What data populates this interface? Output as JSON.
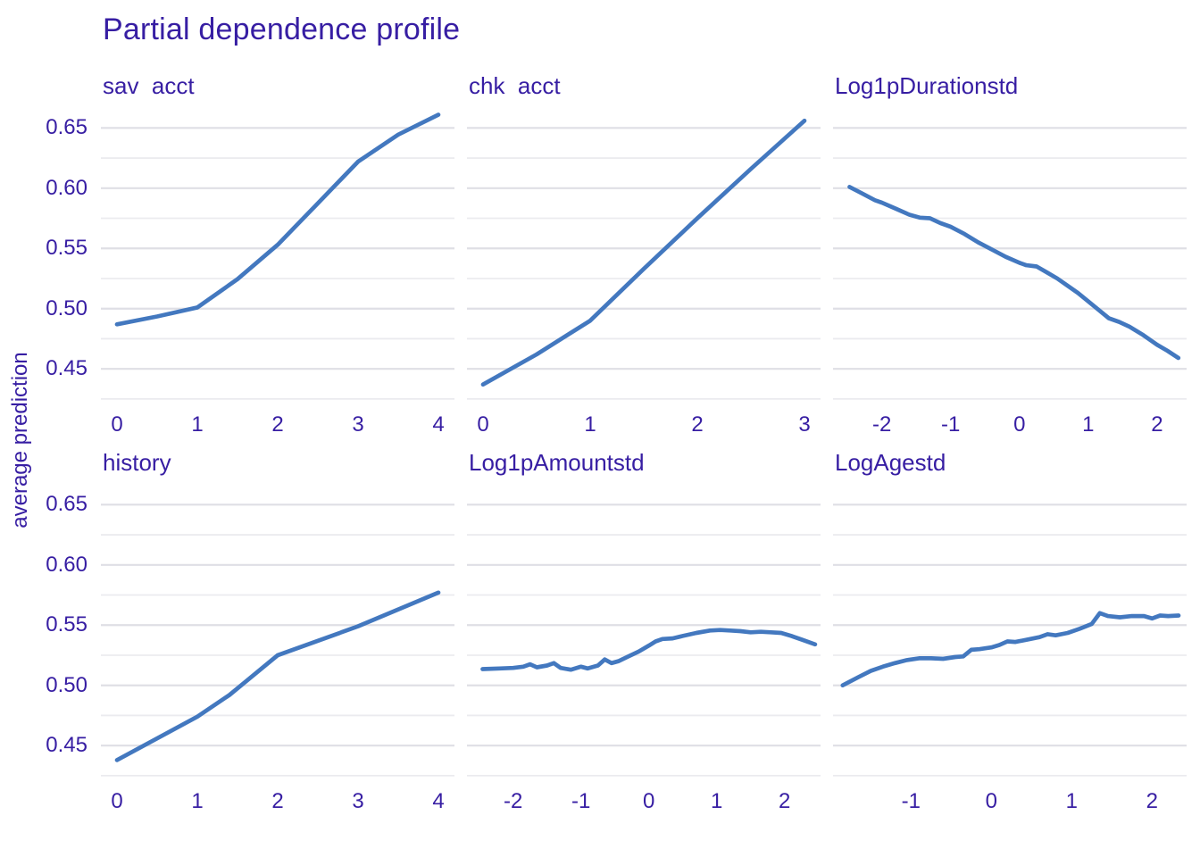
{
  "title": "Partial dependence profile",
  "ylabel": "average prediction",
  "colors": {
    "text": "#371ea3",
    "line": "#4378bf",
    "grid_major": "#dfdfe5",
    "grid_minor": "#ebebef",
    "background": "#ffffff"
  },
  "chart_data": {
    "type": "line",
    "figure_title": "Partial dependence profile",
    "ylabel": "average prediction",
    "ylim": [
      0.419,
      0.671
    ],
    "grid": "horizontal-only",
    "legend": "none",
    "y_axis": {
      "tick_values": [
        0.65,
        0.6,
        0.55,
        0.5,
        0.45
      ],
      "tick_labels": [
        "0.65",
        "0.60",
        "0.55",
        "0.50",
        "0.45"
      ],
      "minor_gridlines": [
        0.625,
        0.575,
        0.525,
        0.475,
        0.425
      ]
    },
    "panels": [
      {
        "label": "sav  acct",
        "xlim": [
          -0.2,
          4.2
        ],
        "xticks": {
          "values": [
            0,
            1,
            2,
            3,
            4
          ],
          "labels": [
            "0",
            "1",
            "2",
            "3",
            "4"
          ]
        },
        "points": [
          [
            0,
            0.487
          ],
          [
            0.5,
            0.4935
          ],
          [
            1,
            0.501
          ],
          [
            1.5,
            0.5245
          ],
          [
            2,
            0.553
          ],
          [
            2.5,
            0.5875
          ],
          [
            3,
            0.622
          ],
          [
            3.5,
            0.6445
          ],
          [
            4,
            0.661
          ]
        ]
      },
      {
        "label": "chk  acct",
        "xlim": [
          -0.15,
          3.15
        ],
        "xticks": {
          "values": [
            0,
            1,
            2,
            3
          ],
          "labels": [
            "0",
            "1",
            "2",
            "3"
          ]
        },
        "points": [
          [
            0,
            0.437
          ],
          [
            0.5,
            0.462
          ],
          [
            1,
            0.49
          ],
          [
            1.5,
            0.533
          ],
          [
            2,
            0.575
          ],
          [
            2.5,
            0.616
          ],
          [
            3,
            0.656
          ]
        ]
      },
      {
        "label": "Log1pDurationstd",
        "xlim": [
          -2.71,
          2.43
        ],
        "xticks": {
          "values": [
            -2,
            -1,
            0,
            1,
            2
          ],
          "labels": [
            "-2",
            "-1",
            "0",
            "1",
            "2"
          ]
        },
        "points": [
          [
            -2.47,
            0.601
          ],
          [
            -2.3,
            0.596
          ],
          [
            -2.1,
            0.59
          ],
          [
            -2.0,
            0.588
          ],
          [
            -1.8,
            0.583
          ],
          [
            -1.6,
            0.578
          ],
          [
            -1.45,
            0.5755
          ],
          [
            -1.3,
            0.575
          ],
          [
            -1.15,
            0.571
          ],
          [
            -1.0,
            0.568
          ],
          [
            -0.8,
            0.562
          ],
          [
            -0.6,
            0.555
          ],
          [
            -0.4,
            0.549
          ],
          [
            -0.2,
            0.543
          ],
          [
            0,
            0.538
          ],
          [
            0.1,
            0.536
          ],
          [
            0.25,
            0.535
          ],
          [
            0.4,
            0.53
          ],
          [
            0.55,
            0.525
          ],
          [
            0.7,
            0.519
          ],
          [
            0.85,
            0.513
          ],
          [
            1.0,
            0.506
          ],
          [
            1.15,
            0.499
          ],
          [
            1.3,
            0.492
          ],
          [
            1.45,
            0.489
          ],
          [
            1.6,
            0.485
          ],
          [
            1.8,
            0.478
          ],
          [
            2.0,
            0.47
          ],
          [
            2.15,
            0.465
          ],
          [
            2.31,
            0.459
          ]
        ]
      },
      {
        "label": "history",
        "xlim": [
          -0.2,
          4.2
        ],
        "xticks": {
          "values": [
            0,
            1,
            2,
            3,
            4
          ],
          "labels": [
            "0",
            "1",
            "2",
            "3",
            "4"
          ]
        },
        "points": [
          [
            0,
            0.438
          ],
          [
            1,
            0.474
          ],
          [
            1.4,
            0.492
          ],
          [
            2,
            0.525
          ],
          [
            3,
            0.549
          ],
          [
            4,
            0.577
          ]
        ]
      },
      {
        "label": "Log1pAmountstd",
        "xlim": [
          -2.68,
          2.53
        ],
        "xticks": {
          "values": [
            -2,
            -1,
            0,
            1,
            2
          ],
          "labels": [
            "-2",
            "-1",
            "0",
            "1",
            "2"
          ]
        },
        "points": [
          [
            -2.45,
            0.5135
          ],
          [
            -2.2,
            0.514
          ],
          [
            -2.0,
            0.5145
          ],
          [
            -1.85,
            0.5155
          ],
          [
            -1.75,
            0.5175
          ],
          [
            -1.65,
            0.515
          ],
          [
            -1.5,
            0.5165
          ],
          [
            -1.4,
            0.5185
          ],
          [
            -1.3,
            0.5145
          ],
          [
            -1.15,
            0.513
          ],
          [
            -1.0,
            0.5155
          ],
          [
            -0.9,
            0.514
          ],
          [
            -0.75,
            0.5165
          ],
          [
            -0.65,
            0.5215
          ],
          [
            -0.55,
            0.5185
          ],
          [
            -0.45,
            0.52
          ],
          [
            -0.3,
            0.524
          ],
          [
            -0.15,
            0.528
          ],
          [
            0,
            0.533
          ],
          [
            0.1,
            0.5365
          ],
          [
            0.2,
            0.5385
          ],
          [
            0.35,
            0.539
          ],
          [
            0.5,
            0.541
          ],
          [
            0.7,
            0.5435
          ],
          [
            0.9,
            0.5455
          ],
          [
            1.05,
            0.546
          ],
          [
            1.2,
            0.5455
          ],
          [
            1.35,
            0.545
          ],
          [
            1.5,
            0.544
          ],
          [
            1.65,
            0.5445
          ],
          [
            1.8,
            0.544
          ],
          [
            1.95,
            0.5435
          ],
          [
            2.1,
            0.541
          ],
          [
            2.25,
            0.538
          ],
          [
            2.45,
            0.534
          ]
        ]
      },
      {
        "label": "LogAgestd",
        "xlim": [
          -1.97,
          2.43
        ],
        "xticks": {
          "values": [
            -1,
            0,
            1,
            2
          ],
          "labels": [
            "-1",
            "0",
            "1",
            "2"
          ]
        },
        "points": [
          [
            -1.85,
            0.5
          ],
          [
            -1.65,
            0.507
          ],
          [
            -1.5,
            0.512
          ],
          [
            -1.35,
            0.5155
          ],
          [
            -1.2,
            0.5185
          ],
          [
            -1.05,
            0.521
          ],
          [
            -0.9,
            0.5225
          ],
          [
            -0.75,
            0.5225
          ],
          [
            -0.6,
            0.522
          ],
          [
            -0.45,
            0.5235
          ],
          [
            -0.35,
            0.524
          ],
          [
            -0.25,
            0.5295
          ],
          [
            -0.15,
            0.53
          ],
          [
            0,
            0.5315
          ],
          [
            0.1,
            0.5335
          ],
          [
            0.2,
            0.5365
          ],
          [
            0.3,
            0.536
          ],
          [
            0.45,
            0.538
          ],
          [
            0.6,
            0.54
          ],
          [
            0.7,
            0.5425
          ],
          [
            0.8,
            0.5415
          ],
          [
            0.95,
            0.5435
          ],
          [
            1.1,
            0.547
          ],
          [
            1.25,
            0.551
          ],
          [
            1.35,
            0.56
          ],
          [
            1.45,
            0.5575
          ],
          [
            1.6,
            0.5565
          ],
          [
            1.75,
            0.5575
          ],
          [
            1.9,
            0.5575
          ],
          [
            2.0,
            0.5555
          ],
          [
            2.1,
            0.558
          ],
          [
            2.2,
            0.5575
          ],
          [
            2.33,
            0.558
          ]
        ]
      }
    ]
  }
}
